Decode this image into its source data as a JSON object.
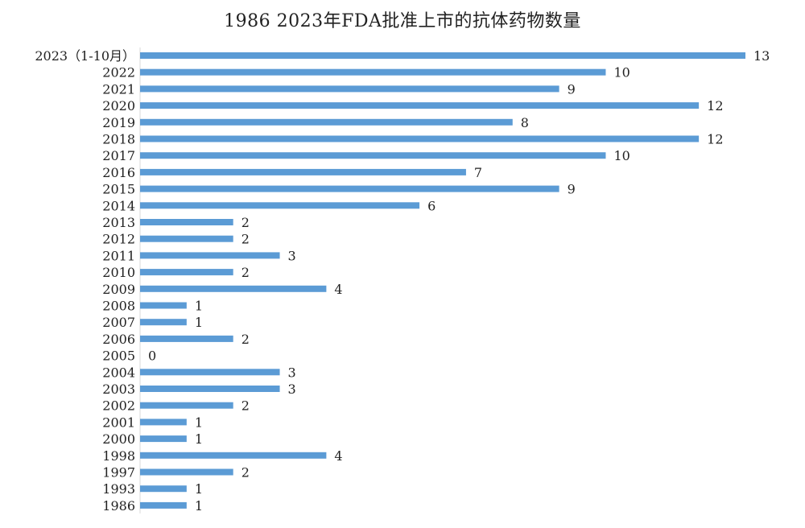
{
  "chart_data": {
    "type": "bar",
    "orientation": "horizontal",
    "title": "1986 2023年FDA批准上市的抗体药物数量",
    "xlabel": "",
    "ylabel": "",
    "xlim": [
      0,
      13
    ],
    "grid": false,
    "legend": "none",
    "bar_color": "#5b9bd5",
    "categories": [
      "2023（1-10月）",
      "2022",
      "2021",
      "2020",
      "2019",
      "2018",
      "2017",
      "2016",
      "2015",
      "2014",
      "2013",
      "2012",
      "2011",
      "2010",
      "2009",
      "2008",
      "2007",
      "2006",
      "2005",
      "2004",
      "2003",
      "2002",
      "2001",
      "2000",
      "1998",
      "1997",
      "1993",
      "1986"
    ],
    "values": [
      13,
      10,
      9,
      12,
      8,
      12,
      10,
      7,
      9,
      6,
      2,
      2,
      3,
      2,
      4,
      1,
      1,
      2,
      0,
      3,
      3,
      2,
      1,
      1,
      4,
      2,
      1,
      1
    ]
  }
}
